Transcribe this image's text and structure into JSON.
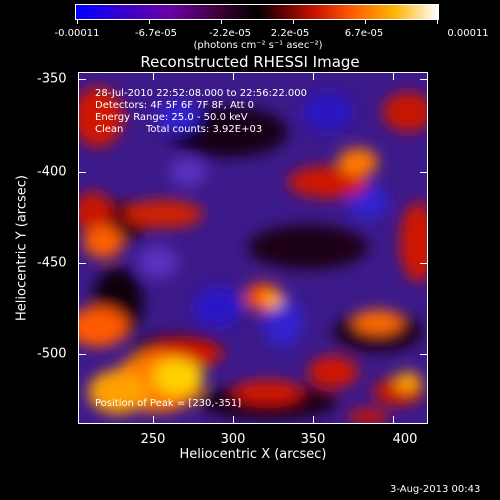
{
  "title": "Reconstructed RHESSI Image",
  "colorbar": {
    "tick_labels": [
      "-0.00011",
      "-6.7e-05",
      "-2.2e-05",
      "2.2e-05",
      "6.7e-05",
      "0.00011"
    ],
    "units": "(photons cm⁻² s⁻¹ asec⁻²)",
    "range": [
      -0.00011,
      0.00011
    ],
    "colors": [
      "#0000ff",
      "#6a00a8",
      "#000000",
      "#c81400",
      "#ff5a00",
      "#ffb400",
      "#ffffff"
    ]
  },
  "info": {
    "time_range": "28-Jul-2010 22:52:08.000 to 22:56:22.000",
    "detectors": "Detectors: 4F 5F 6F 7F 8F, Att 0",
    "energy": "Energy Range: 25.0 - 50.0 keV",
    "algorithm": "Clean",
    "total_counts": "Total counts: 3.92E+03",
    "peak": "Position of Peak = [230,-351]"
  },
  "axes": {
    "xlabel": "Heliocentric X (arcsec)",
    "ylabel": "Heliocentric Y (arcsec)",
    "xticks": [
      "250",
      "300",
      "350",
      "400"
    ],
    "yticks": [
      "-350",
      "-400",
      "-450",
      "-500"
    ],
    "xlim": [
      212,
      407
    ],
    "ylim": [
      -543,
      -346
    ]
  },
  "date_stamp": "3-Aug-2013 00:43"
}
